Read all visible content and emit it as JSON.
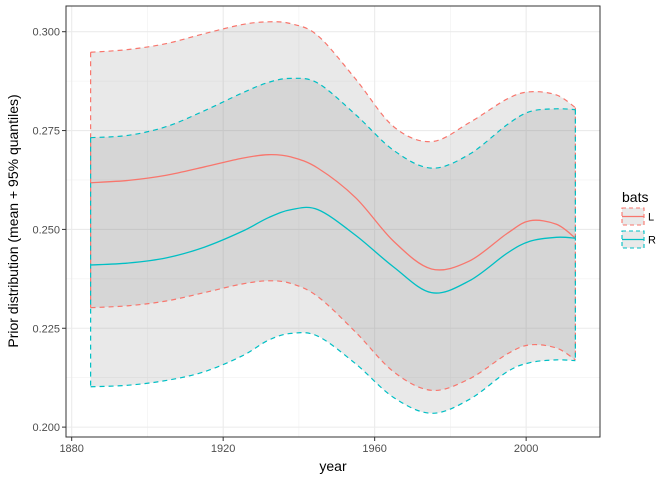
{
  "chart_data": {
    "type": "line",
    "title": "",
    "xlabel": "year",
    "ylabel": "Prior distribution (mean + 95% quantiles)",
    "xlim": [
      1878.5,
      2019.5
    ],
    "ylim": [
      0.1975,
      0.3065
    ],
    "x_ticks": [
      1880,
      1920,
      1960,
      2000
    ],
    "x_tick_labels": [
      "1880",
      "1920",
      "1960",
      "2000"
    ],
    "y_ticks": [
      0.2,
      0.225,
      0.25,
      0.275,
      0.3
    ],
    "y_tick_labels": [
      "0.200",
      "0.225",
      "0.250",
      "0.275",
      "0.300"
    ],
    "grid": true,
    "legend": {
      "title": "bats",
      "position": "right"
    },
    "x": [
      1885,
      1895,
      1905,
      1915,
      1925,
      1932,
      1938,
      1945,
      1955,
      1965,
      1975,
      1985,
      1995,
      2001,
      2008,
      2013
    ],
    "series": [
      {
        "name": "L",
        "color": "#F8766D",
        "mean": [
          0.2618,
          0.2624,
          0.2637,
          0.2658,
          0.268,
          0.2689,
          0.2683,
          0.2655,
          0.258,
          0.247,
          0.24,
          0.242,
          0.249,
          0.2522,
          0.2513,
          0.2478
        ],
        "lower": [
          0.2302,
          0.2307,
          0.2319,
          0.234,
          0.2362,
          0.237,
          0.2363,
          0.233,
          0.224,
          0.214,
          0.2093,
          0.2122,
          0.2185,
          0.2208,
          0.22,
          0.217
        ],
        "upper": [
          0.2948,
          0.2955,
          0.297,
          0.2995,
          0.3018,
          0.3025,
          0.302,
          0.299,
          0.288,
          0.276,
          0.2722,
          0.277,
          0.283,
          0.2848,
          0.284,
          0.2808
        ]
      },
      {
        "name": "R",
        "color": "#00BFC4",
        "mean": [
          0.241,
          0.2415,
          0.2428,
          0.2455,
          0.2495,
          0.253,
          0.255,
          0.255,
          0.2485,
          0.2405,
          0.234,
          0.237,
          0.244,
          0.247,
          0.248,
          0.2478
        ],
        "lower": [
          0.2102,
          0.2106,
          0.2118,
          0.214,
          0.218,
          0.222,
          0.2237,
          0.223,
          0.216,
          0.2075,
          0.2035,
          0.207,
          0.214,
          0.2163,
          0.217,
          0.2168
        ],
        "upper": [
          0.2732,
          0.2738,
          0.276,
          0.28,
          0.2845,
          0.2872,
          0.2882,
          0.287,
          0.279,
          0.27,
          0.2655,
          0.269,
          0.2765,
          0.2798,
          0.2805,
          0.2803
        ]
      }
    ]
  }
}
